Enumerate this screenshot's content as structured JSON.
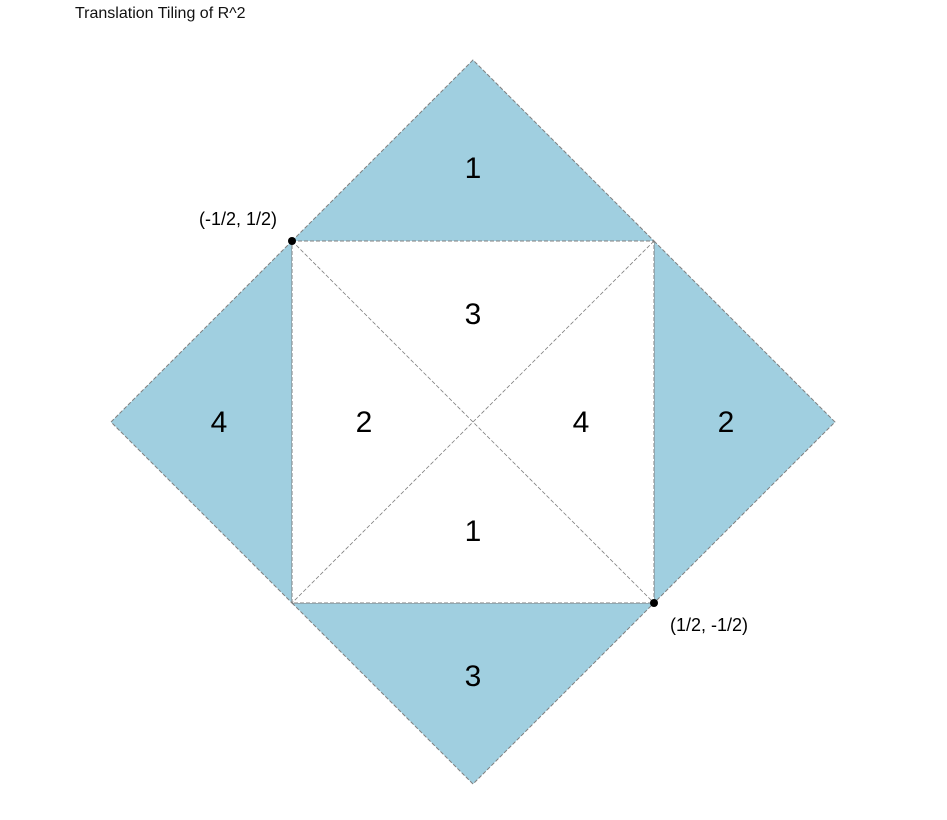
{
  "title": "Translation Tiling of R^2",
  "colors": {
    "shaded_fill": "#a0cfe0",
    "unshaded_fill": "#ffffff",
    "outline": "#7f7f7f",
    "point": "#000000"
  },
  "outer_regions": [
    {
      "id": "top",
      "label": "1"
    },
    {
      "id": "right",
      "label": "2"
    },
    {
      "id": "bottom",
      "label": "3"
    },
    {
      "id": "left",
      "label": "4"
    }
  ],
  "inner_regions": [
    {
      "id": "inner-top",
      "label": "3"
    },
    {
      "id": "inner-right",
      "label": "4"
    },
    {
      "id": "inner-bottom",
      "label": "1"
    },
    {
      "id": "inner-left",
      "label": "2"
    }
  ],
  "points": [
    {
      "id": "top-left",
      "label": "(-1/2, 1/2)"
    },
    {
      "id": "bottom-right",
      "label": "(1/2, -1/2)"
    }
  ]
}
